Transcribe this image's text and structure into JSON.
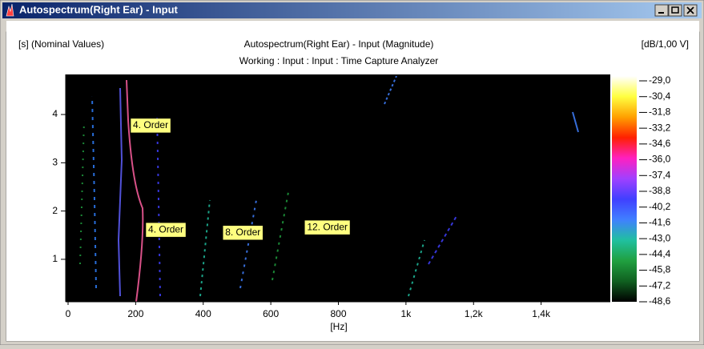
{
  "window": {
    "title": "Autospectrum(Right Ear) - Input"
  },
  "chart_data": {
    "type": "heatmap",
    "title": "Autospectrum(Right Ear) - Input (Magnitude)",
    "subtitle": "Working : Input : Input : Time Capture Analyzer",
    "y_label": "[s] (Nominal Values)",
    "unit_label": "[dB/1,00 V]",
    "x_label": "[Hz]",
    "xlim": [
      0,
      1600
    ],
    "xticks": [
      0,
      200,
      400,
      600,
      800,
      {
        "value": 1000,
        "label": "1k"
      },
      {
        "value": 1200,
        "label": "1,2k"
      },
      {
        "value": 1400,
        "label": "1,4k"
      }
    ],
    "ylim": [
      0.12,
      4.83
    ],
    "yticks": [
      1,
      2,
      3,
      4
    ],
    "clim": [
      -48.6,
      -29.0
    ],
    "cticks": [
      {
        "value": -29.0,
        "label": "-29,0"
      },
      {
        "value": -30.4,
        "label": "-30,4"
      },
      {
        "value": -31.8,
        "label": "-31,8"
      },
      {
        "value": -33.2,
        "label": "-33,2"
      },
      {
        "value": -34.6,
        "label": "-34,6"
      },
      {
        "value": -36.0,
        "label": "-36,0"
      },
      {
        "value": -37.4,
        "label": "-37,4"
      },
      {
        "value": -38.8,
        "label": "-38,8"
      },
      {
        "value": -40.2,
        "label": "-40,2"
      },
      {
        "value": -41.6,
        "label": "-41,6"
      },
      {
        "value": -43.0,
        "label": "-43,0"
      },
      {
        "value": -44.4,
        "label": "-44,4"
      },
      {
        "value": -45.8,
        "label": "-45,8"
      },
      {
        "value": -47.2,
        "label": "-47,2"
      },
      {
        "value": -48.6,
        "label": "-48,6"
      }
    ],
    "colormap": [
      "#ffffff",
      "#ffff40",
      "#ffa000",
      "#ff2000",
      "#ff20c0",
      "#a040ff",
      "#4040ff",
      "#4080ff",
      "#20c0a0",
      "#20a040",
      "#106020",
      "#000000"
    ],
    "annotations": [
      {
        "text": "4. Order",
        "x": 185,
        "y": 3.77
      },
      {
        "text": "4. Order",
        "x": 230,
        "y": 1.61
      },
      {
        "text": "8. Order",
        "x": 458,
        "y": 1.55
      },
      {
        "text": "12. Order",
        "x": 700,
        "y": 1.66
      }
    ]
  }
}
